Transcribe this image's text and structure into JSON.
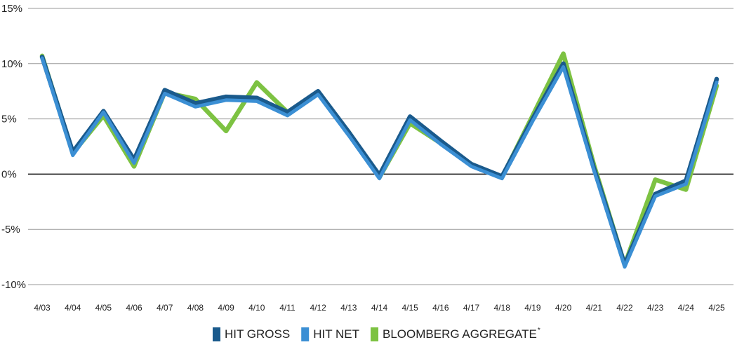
{
  "chart_data": {
    "type": "line",
    "categories": [
      "4/03",
      "4/04",
      "4/05",
      "4/06",
      "4/07",
      "4/08",
      "4/09",
      "4/10",
      "4/11",
      "4/12",
      "4/13",
      "4/14",
      "4/15",
      "4/16",
      "4/17",
      "4/18",
      "4/19",
      "4/20",
      "4/21",
      "4/22",
      "4/23",
      "4/24",
      "4/25"
    ],
    "ylim": [
      -10,
      15
    ],
    "yticks": [
      15,
      10,
      5,
      0,
      -5,
      -10
    ],
    "ytick_labels": [
      "15%",
      "10%",
      "5%",
      "0%",
      "-5%",
      "-10%"
    ],
    "grid": true,
    "legend_position": "bottom",
    "series": [
      {
        "name": "BLOOMBERG AGGREGATE",
        "name_suffix": "*",
        "color": "#7dc242",
        "values": [
          10.7,
          1.9,
          5.3,
          0.7,
          7.4,
          6.8,
          3.9,
          8.3,
          5.6,
          7.3,
          3.8,
          -0.3,
          4.6,
          2.8,
          0.9,
          -0.3,
          5.3,
          10.9,
          0.8,
          -8.2,
          -0.5,
          -1.4,
          8.0
        ]
      },
      {
        "name": "HIT GROSS",
        "color": "#1a5a8c",
        "values": [
          10.6,
          2.0,
          5.7,
          1.3,
          7.6,
          6.4,
          7.0,
          6.9,
          5.6,
          7.5,
          3.8,
          -0.1,
          5.2,
          3.0,
          0.9,
          -0.2,
          5.0,
          10.0,
          0.5,
          -8.2,
          -1.8,
          -0.6,
          8.6
        ]
      },
      {
        "name": "HIT NET",
        "color": "#3b8fd4",
        "values": [
          10.5,
          1.7,
          5.6,
          1.0,
          7.3,
          6.1,
          6.7,
          6.6,
          5.3,
          7.2,
          3.5,
          -0.4,
          4.9,
          2.7,
          0.7,
          -0.4,
          4.8,
          9.7,
          0.3,
          -8.4,
          -2.0,
          -0.9,
          8.3
        ]
      }
    ]
  }
}
